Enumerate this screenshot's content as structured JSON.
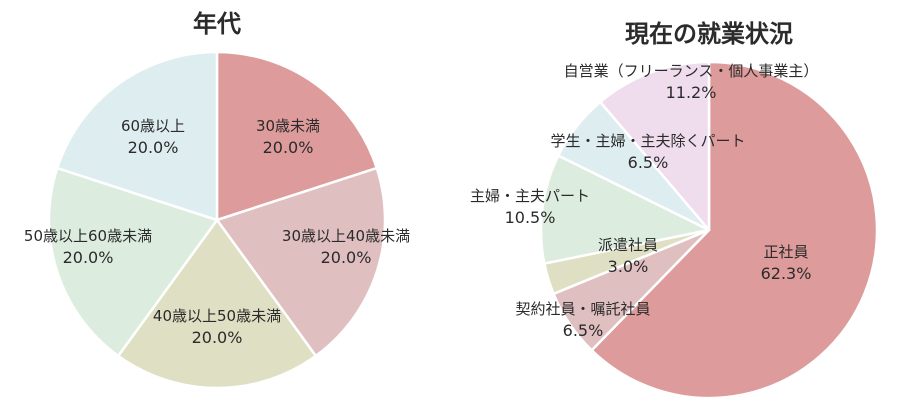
{
  "chart_data": [
    {
      "type": "pie",
      "title": "年代",
      "categories": [
        "30歳未満",
        "30歳以上40歳未満",
        "40歳以上50歳未満",
        "50歳以上60歳未満",
        "60歳以上"
      ],
      "values": [
        20.0,
        20.0,
        20.0,
        20.0,
        20.0
      ],
      "value_labels": [
        "20.0%",
        "20.0%",
        "20.0%",
        "20.0%",
        "20.0%"
      ],
      "colors": [
        "#dd9b9b",
        "#e0bfc0",
        "#dedfc3",
        "#dcecdf",
        "#deedf0"
      ],
      "start_angle": "12 o'clock, clockwise",
      "legend": "none (labels inside slices)"
    },
    {
      "type": "pie",
      "title": "現在の就業状況",
      "categories": [
        "正社員",
        "契約社員・嘱託社員",
        "派遣社員",
        "主婦・主夫パート",
        "学生・主婦・主夫除くパート",
        "自営業（フリーランス・個人事業主）"
      ],
      "values": [
        62.3,
        6.5,
        3.0,
        10.5,
        6.5,
        11.2
      ],
      "value_labels": [
        "62.3%",
        "6.5%",
        "3.0%",
        "10.5%",
        "6.5%",
        "11.2%"
      ],
      "colors": [
        "#dd9b9b",
        "#e0bfc0",
        "#dedfc3",
        "#dcecdf",
        "#deedf0",
        "#efdded"
      ],
      "start_angle": "12 o'clock, clockwise",
      "legend": "none (labels inside/near slices)"
    }
  ],
  "charts": {
    "age": {
      "title": "年代",
      "slices": [
        {
          "name": "30歳未満",
          "pct": "20.0%"
        },
        {
          "name": "30歳以上40歳未満",
          "pct": "20.0%"
        },
        {
          "name": "40歳以上50歳未満",
          "pct": "20.0%"
        },
        {
          "name": "50歳以上60歳未満",
          "pct": "20.0%"
        },
        {
          "name": "60歳以上",
          "pct": "20.0%"
        }
      ]
    },
    "employment": {
      "title": "現在の就業状況",
      "slices": [
        {
          "name": "正社員",
          "pct": "62.3%"
        },
        {
          "name": "契約社員・嘱託社員",
          "pct": "6.5%"
        },
        {
          "name": "派遣社員",
          "pct": "3.0%"
        },
        {
          "name": "主婦・主夫パート",
          "pct": "10.5%"
        },
        {
          "name": "学生・主婦・主夫除くパート",
          "pct": "6.5%"
        },
        {
          "name": "自営業（フリーランス・個人事業主）",
          "pct": "11.2%"
        }
      ]
    }
  }
}
